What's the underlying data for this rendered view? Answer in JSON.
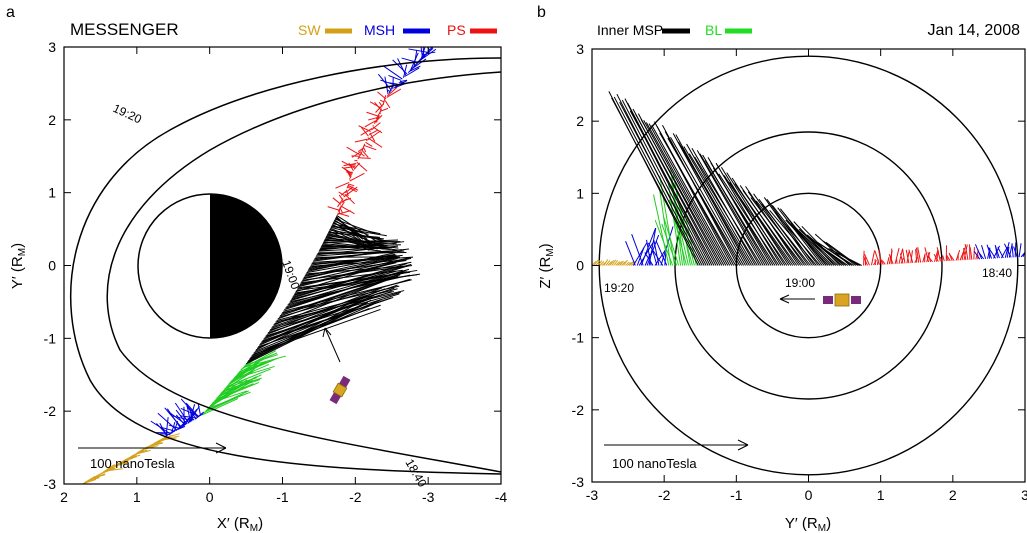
{
  "figure": {
    "date": "Jan 14, 2008"
  },
  "panel_a": {
    "letter": "a",
    "title": "MESSENGER",
    "legend": [
      {
        "label": "SW",
        "color": "#d4a017"
      },
      {
        "label": "MSH",
        "color": "#0000dd"
      },
      {
        "label": "PS",
        "color": "#ee1111"
      }
    ],
    "time_labels": [
      "19:20",
      "19:00",
      "18:40"
    ],
    "scale_label": "100 nanoTesla"
  },
  "panel_b": {
    "letter": "b",
    "legend": [
      {
        "label": "Inner MSP",
        "color": "#000000"
      },
      {
        "label": "BL",
        "color": "#22dd22"
      }
    ],
    "time_labels": [
      "19:20",
      "19:00",
      "18:40"
    ],
    "scale_label": "100 nanoTesla"
  },
  "chart_data": [
    {
      "type": "scatter",
      "panel": "a",
      "title": "MESSENGER",
      "xlabel": "X' (RM)",
      "ylabel": "Y' (RM)",
      "xlim": [
        2,
        -4
      ],
      "ylim": [
        3,
        -3
      ],
      "x_ticks": [
        2,
        1,
        0,
        -1,
        -2,
        -3,
        -4
      ],
      "y_ticks": [
        -3,
        -2,
        -1,
        0,
        1,
        2,
        3
      ],
      "planet_radius": 1,
      "series": [
        {
          "name": "SW",
          "color": "#d4a017",
          "x": [
            1.7,
            1.4,
            1.1,
            0.85,
            0.65
          ],
          "y": [
            -2.95,
            -2.8,
            -2.65,
            -2.5,
            -2.38
          ]
        },
        {
          "name": "MSH",
          "color": "#0000dd",
          "x": [
            0.6,
            0.3,
            0.05,
            -2.5,
            -2.8,
            -3.05
          ],
          "y": [
            -2.35,
            -2.2,
            -2.05,
            2.35,
            2.6,
            2.95
          ]
        },
        {
          "name": "PS",
          "color": "#ee1111",
          "x": [
            -1.75,
            -1.85,
            -2.0,
            -2.2,
            -2.45
          ],
          "y": [
            0.7,
            1.0,
            1.5,
            1.95,
            2.35
          ]
        }
      ]
    },
    {
      "type": "scatter",
      "panel": "b",
      "xlabel": "Y' (RM)",
      "ylabel": "Z' (RM)",
      "xlim": [
        -3,
        3
      ],
      "ylim": [
        -3,
        3
      ],
      "x_ticks": [
        -3,
        -2,
        -1,
        0,
        1,
        2,
        3
      ],
      "y_ticks": [
        -3,
        -2,
        -1,
        0,
        1,
        2,
        3
      ],
      "circle_radii": [
        1,
        1.85,
        2.9
      ],
      "series": [
        {
          "name": "Inner MSP",
          "color": "#000000",
          "x": [
            -1.4,
            -1.0,
            -0.5,
            0,
            0.5,
            0.7
          ],
          "y": [
            0,
            0,
            0,
            0,
            0,
            0
          ]
        },
        {
          "name": "BL",
          "color": "#22dd22",
          "x": [
            -2.0,
            -1.8,
            -1.6
          ],
          "y": [
            0,
            0,
            0
          ]
        },
        {
          "name": "SW",
          "color": "#d4a017",
          "x": [
            -2.95,
            -2.7,
            -2.45
          ],
          "y": [
            -0.05,
            -0.04,
            -0.03
          ]
        },
        {
          "name": "MSH",
          "color": "#0000dd",
          "x": [
            -2.4,
            -2.2,
            -2.05,
            2.35,
            2.65,
            2.95
          ],
          "y": [
            0,
            0,
            0,
            0.15,
            0.12,
            0.08
          ]
        },
        {
          "name": "PS",
          "color": "#ee1111",
          "x": [
            0.8,
            1.3,
            1.8,
            2.3
          ],
          "y": [
            0.02,
            0.06,
            0.1,
            0.13
          ]
        }
      ]
    }
  ]
}
